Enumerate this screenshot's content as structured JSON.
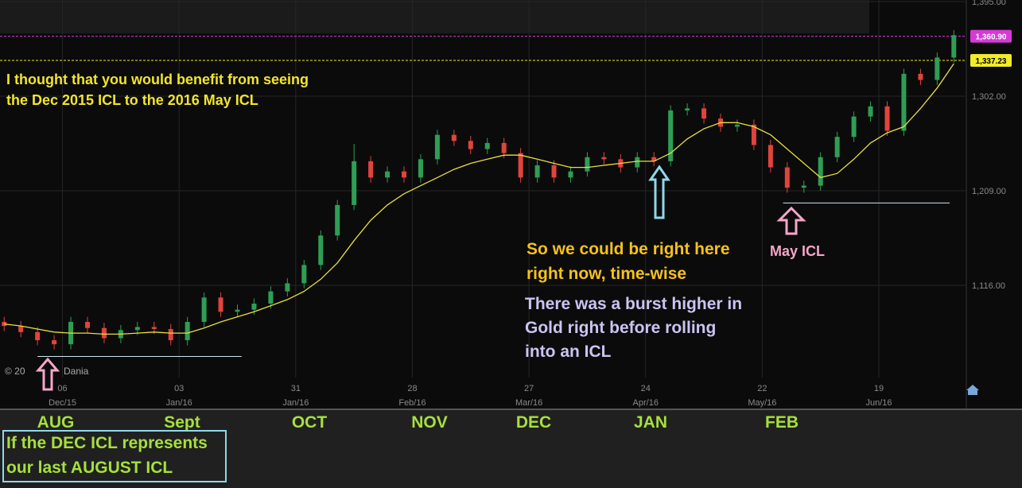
{
  "chart_data": {
    "type": "candlestick",
    "dates": [
      "2015-11-22",
      "2015-11-26",
      "2015-11-30",
      "2015-12-04",
      "2015-12-08",
      "2015-12-12",
      "2015-12-16",
      "2015-12-20",
      "2015-12-24",
      "2015-12-28",
      "2016-01-01",
      "2016-01-05",
      "2016-01-09",
      "2016-01-13",
      "2016-01-17",
      "2016-01-21",
      "2016-01-25",
      "2016-01-29",
      "2016-02-02",
      "2016-02-06",
      "2016-02-10",
      "2016-02-14",
      "2016-02-18",
      "2016-02-22",
      "2016-02-26",
      "2016-03-01",
      "2016-03-05",
      "2016-03-09",
      "2016-03-13",
      "2016-03-17",
      "2016-03-21",
      "2016-03-25",
      "2016-03-29",
      "2016-04-02",
      "2016-04-06",
      "2016-04-10",
      "2016-04-14",
      "2016-04-18",
      "2016-04-22",
      "2016-04-26",
      "2016-04-30",
      "2016-05-04",
      "2016-05-08",
      "2016-05-12",
      "2016-05-16",
      "2016-05-20",
      "2016-05-24",
      "2016-05-28",
      "2016-06-01",
      "2016-06-05",
      "2016-06-09",
      "2016-06-13",
      "2016-06-17",
      "2016-06-21",
      "2016-06-25",
      "2016-06-29",
      "2016-07-03",
      "2016-07-07"
    ],
    "open": [
      1080,
      1076,
      1070,
      1062,
      1058,
      1080,
      1074,
      1064,
      1072,
      1075,
      1073,
      1062,
      1080,
      1104,
      1090,
      1092,
      1098,
      1110,
      1118,
      1136,
      1165,
      1195,
      1238,
      1222,
      1228,
      1222,
      1240,
      1264,
      1258,
      1250,
      1256,
      1246,
      1222,
      1234,
      1222,
      1228,
      1242,
      1240,
      1232,
      1242,
      1238,
      1288,
      1290,
      1280,
      1272,
      1274,
      1254,
      1232,
      1212,
      1214,
      1242,
      1262,
      1282,
      1292,
      1268,
      1324,
      1318,
      1340
    ],
    "high": [
      1085,
      1081,
      1075,
      1067,
      1085,
      1085,
      1079,
      1077,
      1080,
      1080,
      1078,
      1085,
      1109,
      1109,
      1097,
      1103,
      1115,
      1123,
      1141,
      1170,
      1200,
      1255,
      1243,
      1233,
      1233,
      1245,
      1269,
      1269,
      1263,
      1261,
      1261,
      1251,
      1239,
      1239,
      1233,
      1247,
      1247,
      1245,
      1247,
      1247,
      1293,
      1295,
      1295,
      1285,
      1279,
      1279,
      1259,
      1237,
      1219,
      1247,
      1267,
      1287,
      1297,
      1297,
      1329,
      1329,
      1345,
      1367
    ],
    "low": [
      1071,
      1065,
      1057,
      1053,
      1053,
      1069,
      1059,
      1059,
      1067,
      1068,
      1057,
      1057,
      1075,
      1085,
      1085,
      1087,
      1093,
      1105,
      1113,
      1131,
      1160,
      1190,
      1217,
      1217,
      1217,
      1217,
      1235,
      1253,
      1245,
      1245,
      1241,
      1217,
      1217,
      1217,
      1217,
      1223,
      1235,
      1227,
      1227,
      1233,
      1233,
      1283,
      1275,
      1267,
      1267,
      1249,
      1227,
      1207,
      1207,
      1209,
      1237,
      1257,
      1277,
      1263,
      1263,
      1313,
      1313,
      1335
    ],
    "close": [
      1076,
      1070,
      1062,
      1058,
      1080,
      1074,
      1064,
      1072,
      1075,
      1073,
      1062,
      1080,
      1104,
      1090,
      1092,
      1098,
      1110,
      1118,
      1136,
      1165,
      1195,
      1238,
      1222,
      1228,
      1222,
      1240,
      1264,
      1258,
      1250,
      1256,
      1246,
      1222,
      1234,
      1222,
      1228,
      1242,
      1240,
      1232,
      1242,
      1238,
      1288,
      1290,
      1280,
      1272,
      1274,
      1254,
      1232,
      1212,
      1214,
      1242,
      1262,
      1282,
      1292,
      1268,
      1324,
      1318,
      1340,
      1362
    ],
    "up_color": "#2f9e55",
    "down_color": "#e0443c",
    "moving_average": {
      "color": "#e8e03a",
      "values": [
        1078,
        1076,
        1073,
        1070,
        1069,
        1069,
        1068,
        1068,
        1069,
        1070,
        1069,
        1069,
        1074,
        1080,
        1085,
        1090,
        1096,
        1102,
        1110,
        1122,
        1138,
        1160,
        1180,
        1195,
        1206,
        1214,
        1222,
        1230,
        1236,
        1240,
        1244,
        1244,
        1240,
        1236,
        1232,
        1232,
        1234,
        1236,
        1238,
        1238,
        1246,
        1260,
        1270,
        1276,
        1276,
        1272,
        1264,
        1250,
        1236,
        1222,
        1226,
        1240,
        1256,
        1266,
        1272,
        1290,
        1310,
        1334
      ]
    },
    "xlim": [
      "2015-11-21",
      "2016-07-10"
    ],
    "xticks": [
      {
        "value": "2015-12-06",
        "label": "06"
      },
      {
        "value": "2016-01-03",
        "label": "03"
      },
      {
        "value": "2016-01-31",
        "label": "31"
      },
      {
        "value": "2016-02-28",
        "label": "28"
      },
      {
        "value": "2016-03-27",
        "label": "27"
      },
      {
        "value": "2016-04-24",
        "label": "24"
      },
      {
        "value": "2016-05-22",
        "label": "22"
      },
      {
        "value": "2016-06-19",
        "label": "19"
      }
    ],
    "xtick_months": [
      "Dec/15",
      "Jan/16",
      "Jan/16",
      "Feb/16",
      "Mar/16",
      "Apr/16",
      "May/16",
      "Jun/16"
    ],
    "ylim": [
      1025.3,
      1396.6
    ],
    "yticks": [
      {
        "value": 1395,
        "label": "1,395.00"
      },
      {
        "value": 1302,
        "label": "1,302.00"
      },
      {
        "value": 1209,
        "label": "1,209.00"
      },
      {
        "value": 1116,
        "label": "1,116.00"
      }
    ],
    "grid": true,
    "price_levels": [
      {
        "value": 1360.9,
        "label": "1,360.90",
        "color": "#d63ad6",
        "text_color": "#ffffff"
      },
      {
        "value": 1337.23,
        "label": "1,337.23",
        "color": "#f2ea2a",
        "text_color": "#000000"
      }
    ],
    "support_lines": [
      {
        "value": 1046,
        "from": "2015-11-30",
        "to": "2016-01-18"
      },
      {
        "value": 1197,
        "from": "2016-05-27",
        "to": "2016-07-06"
      }
    ],
    "copyright": [
      "© 20",
      "Dania"
    ],
    "notes": {
      "intro": [
        "I thought that you would benefit from seeing",
        "the Dec 2015 ICL to the 2016 May ICL"
      ],
      "timing": [
        "So we could be right here",
        "right now, time-wise"
      ],
      "burst": [
        "There was a burst higher in",
        "Gold right before rolling",
        "into an ICL"
      ],
      "may_icl": "May ICL",
      "cycle_months": [
        "AUG",
        "Sept",
        "OCT",
        "NOV",
        "DEC",
        "JAN",
        "FEB"
      ],
      "box": [
        "If the DEC ICL represents",
        "our last AUGUST ICL"
      ]
    }
  }
}
